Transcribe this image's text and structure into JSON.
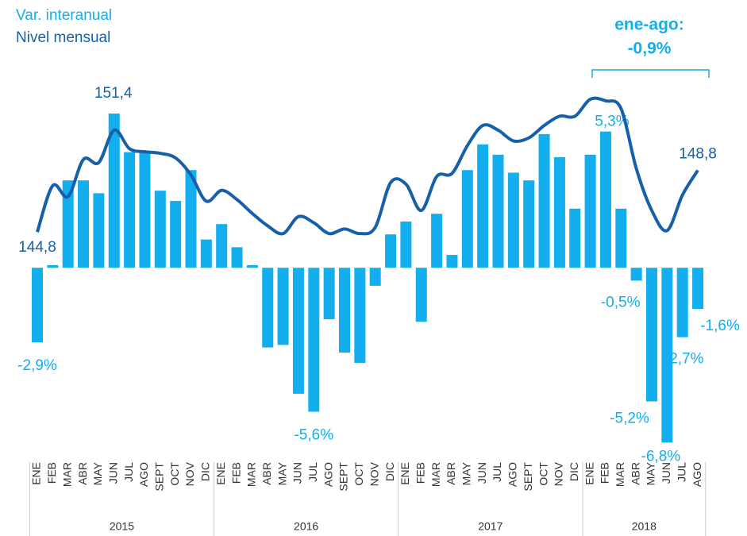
{
  "chart_data": {
    "type": "bar+line",
    "legend": [
      "Var. interanual",
      "Nivel mensual"
    ],
    "annotation": {
      "title": "ene-ago:",
      "value_label": "-0,9%",
      "from": "ENE",
      "to": "AGO"
    },
    "categories": [
      "ENE",
      "FEB",
      "MAR",
      "ABR",
      "MAY",
      "JUN",
      "JUL",
      "AGO",
      "SEPT",
      "OCT",
      "NOV",
      "DIC",
      "ENE",
      "FEB",
      "MAR",
      "ABR",
      "MAY",
      "JUN",
      "JUL",
      "AGO",
      "SEPT",
      "OCT",
      "NOV",
      "DIC",
      "ENE",
      "FEB",
      "MAR",
      "ABR",
      "MAY",
      "JUN",
      "JUL",
      "AGO",
      "SEPT",
      "OCT",
      "NOV",
      "DIC",
      "ENE",
      "FEB",
      "MAR",
      "ABR",
      "MAY",
      "JUN",
      "JUL",
      "AGO"
    ],
    "groups": [
      {
        "name": "2015",
        "size": 12
      },
      {
        "name": "2016",
        "size": 12
      },
      {
        "name": "2017",
        "size": 12
      },
      {
        "name": "2018",
        "size": 8
      }
    ],
    "ylim": [
      -7.5,
      9.8
    ],
    "y2lim": [
      130,
      158.8
    ],
    "series": [
      {
        "name": "Var. interanual",
        "type": "bar",
        "color": "#12aeee",
        "values": [
          -2.9,
          0.1,
          3.4,
          3.4,
          2.9,
          6.0,
          4.5,
          4.5,
          3.0,
          2.6,
          3.8,
          1.1,
          1.7,
          0.8,
          0.1,
          -3.1,
          -3.0,
          -4.9,
          -5.6,
          -2.0,
          -3.3,
          -3.7,
          -0.7,
          1.3,
          1.8,
          -2.1,
          2.1,
          0.5,
          3.8,
          4.8,
          4.4,
          3.7,
          3.4,
          5.2,
          4.3,
          2.3,
          4.4,
          5.3,
          2.3,
          -0.5,
          -5.2,
          -6.8,
          -2.7,
          -1.6
        ],
        "value_labels": [
          "-2,9%",
          null,
          null,
          null,
          null,
          null,
          null,
          null,
          null,
          null,
          null,
          null,
          null,
          null,
          null,
          null,
          null,
          null,
          "-5,6%",
          null,
          null,
          null,
          null,
          null,
          null,
          null,
          null,
          null,
          null,
          null,
          null,
          null,
          null,
          null,
          null,
          null,
          null,
          "5,3%",
          null,
          "-0,5%",
          "-5,2%",
          "-6,8%",
          "-2,7%",
          "-1,6%"
        ]
      },
      {
        "name": "Nivel mensual",
        "type": "line",
        "axis": "y2",
        "color": "#1560a8",
        "values": [
          144.8,
          147.8,
          147.1,
          149.5,
          149.3,
          151.4,
          150.2,
          150.0,
          149.9,
          149.6,
          148.5,
          146.8,
          147.5,
          146.9,
          146.0,
          145.2,
          144.7,
          145.8,
          145.4,
          144.7,
          145.0,
          144.7,
          145.1,
          148.0,
          147.9,
          146.2,
          148.4,
          148.6,
          150.4,
          151.7,
          151.4,
          150.7,
          150.9,
          151.7,
          152.3,
          152.3,
          153.4,
          153.3,
          152.8,
          148.9,
          146.2,
          144.9,
          147.2,
          148.8
        ],
        "value_labels": [
          "144,8",
          null,
          null,
          null,
          null,
          "151,4",
          null,
          null,
          null,
          null,
          null,
          null,
          null,
          null,
          null,
          null,
          null,
          null,
          null,
          null,
          null,
          null,
          null,
          null,
          null,
          null,
          null,
          null,
          null,
          null,
          null,
          null,
          null,
          null,
          null,
          null,
          null,
          null,
          null,
          null,
          null,
          null,
          null,
          "148,8"
        ]
      }
    ]
  }
}
